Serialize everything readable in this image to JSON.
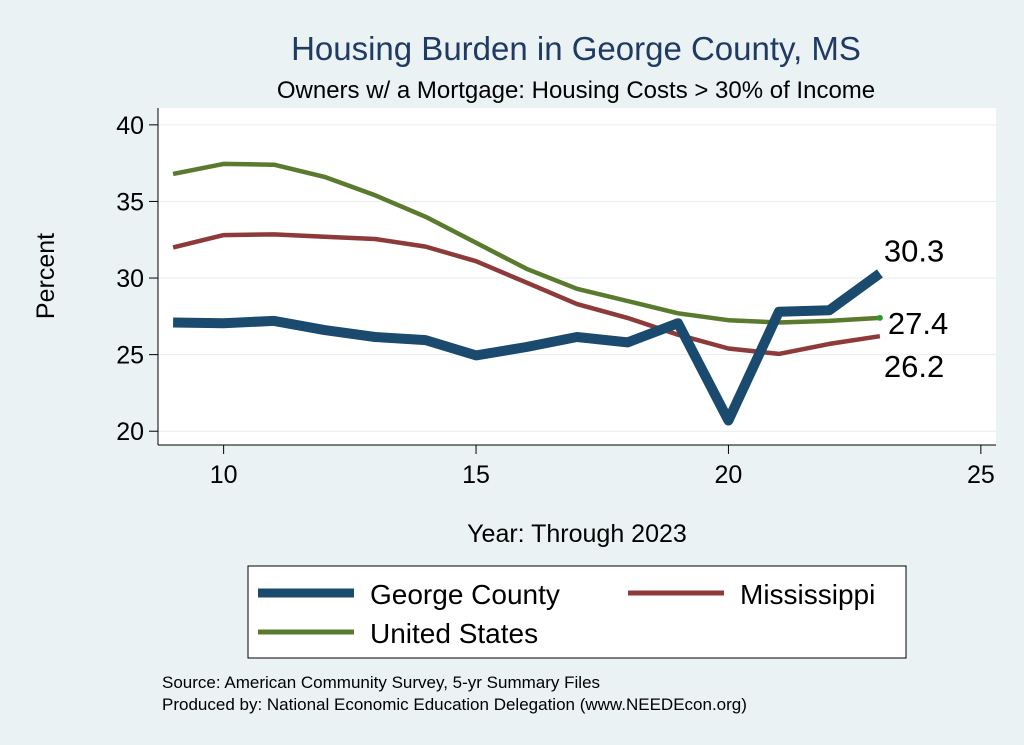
{
  "colors": {
    "background": "#eaf2f3",
    "plot_background": "#ffffff",
    "grid": "#e6eef0",
    "george_county": "#1a4a6e",
    "mississippi": "#8e3a3a",
    "united_states": "#5a7a2e",
    "title": "#1f3a63"
  },
  "chart_data": {
    "type": "line",
    "title": "Housing Burden in George County, MS",
    "subtitle": "Owners w/ a Mortgage: Housing Costs > 30% of Income",
    "xlabel": "Year: Through 2023",
    "ylabel": "Percent",
    "xlim": [
      8.7,
      25.3
    ],
    "ylim": [
      19.1,
      41.1
    ],
    "xticks": [
      10,
      15,
      20,
      25
    ],
    "yticks": [
      20,
      25,
      30,
      35,
      40
    ],
    "grid": true,
    "x": [
      9,
      10,
      11,
      12,
      13,
      14,
      15,
      16,
      17,
      18,
      19,
      20,
      21,
      22,
      23
    ],
    "series": [
      {
        "name": "George County",
        "color_key": "george_county",
        "values": [
          27.1,
          27.05,
          27.2,
          26.6,
          26.15,
          25.95,
          24.95,
          25.5,
          26.15,
          25.8,
          27.05,
          20.7,
          27.8,
          27.9,
          30.3
        ],
        "end_label": "30.3"
      },
      {
        "name": "Mississippi",
        "color_key": "mississippi",
        "values": [
          32.0,
          32.8,
          32.85,
          32.7,
          32.55,
          32.05,
          31.1,
          29.7,
          28.3,
          27.4,
          26.3,
          25.4,
          25.05,
          25.7,
          26.2
        ],
        "end_label": "26.2"
      },
      {
        "name": "United States",
        "color_key": "united_states",
        "values": [
          36.8,
          37.45,
          37.4,
          36.6,
          35.4,
          34.0,
          32.3,
          30.6,
          29.3,
          28.5,
          27.7,
          27.25,
          27.1,
          27.2,
          27.4
        ],
        "end_label": "27.4"
      }
    ],
    "legend": {
      "position": "bottom",
      "items": [
        "George County",
        "Mississippi",
        "United States"
      ]
    },
    "source_note": "Source: American Community Survey, 5-yr Summary Files",
    "produced_note": "Produced by: National Economic Education Delegation (www.NEEDEcon.org)"
  }
}
